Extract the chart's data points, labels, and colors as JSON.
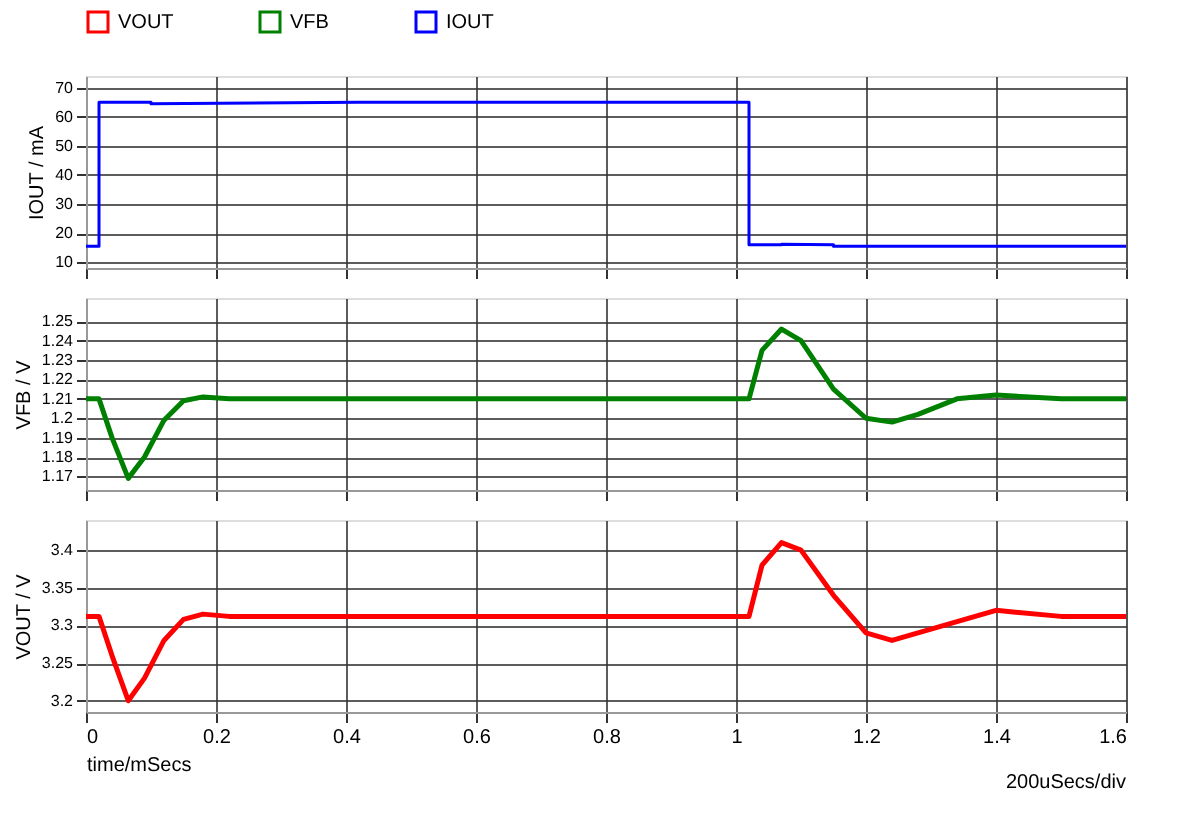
{
  "chart_data": [
    {
      "type": "line",
      "ylabel": "IOUT / mA",
      "legend": "top",
      "grid": true,
      "marker": "none",
      "line_style": "solid",
      "tick_labels": "y",
      "xlim": [
        0,
        1.6
      ],
      "xticks": [
        0,
        0.2,
        0.4,
        0.6,
        0.8,
        1,
        1.2,
        1.4,
        1.6
      ],
      "ylim": [
        8,
        74
      ],
      "yticks": [
        10,
        20,
        30,
        40,
        50,
        60,
        70
      ],
      "series": [
        {
          "name": "IOUT",
          "color": "#0000ff",
          "x": [
            0,
            0.02,
            0.02,
            0.1,
            0.1,
            0.42,
            1.02,
            1.02,
            1.07,
            1.07,
            1.15,
            1.15,
            1.6
          ],
          "values": [
            15.5,
            15.5,
            65,
            65,
            64.5,
            65,
            65,
            16,
            16,
            16.2,
            16,
            15.5,
            15.5
          ]
        }
      ]
    },
    {
      "type": "line",
      "ylabel": "VFB / V",
      "grid": true,
      "marker": "none",
      "line_style": "solid",
      "tick_labels": "y",
      "xlim": [
        0,
        1.6
      ],
      "xticks": [
        0,
        0.2,
        0.4,
        0.6,
        0.8,
        1,
        1.2,
        1.4,
        1.6
      ],
      "ylim": [
        1.163,
        1.262
      ],
      "yticks": [
        1.17,
        1.18,
        1.19,
        1.2,
        1.21,
        1.22,
        1.23,
        1.24,
        1.25
      ],
      "series": [
        {
          "name": "VFB",
          "color": "#008000",
          "x": [
            0,
            0.02,
            0.04,
            0.065,
            0.09,
            0.12,
            0.15,
            0.18,
            0.22,
            1.02,
            1.04,
            1.07,
            1.1,
            1.15,
            1.2,
            1.24,
            1.28,
            1.34,
            1.4,
            1.5,
            1.6
          ],
          "values": [
            1.21,
            1.21,
            1.19,
            1.169,
            1.18,
            1.199,
            1.209,
            1.211,
            1.21,
            1.21,
            1.235,
            1.246,
            1.24,
            1.215,
            1.2,
            1.198,
            1.202,
            1.21,
            1.212,
            1.21,
            1.21
          ]
        }
      ]
    },
    {
      "type": "line",
      "ylabel": "VOUT / V",
      "xlabel": "time/mSecs",
      "grid": true,
      "marker": "none",
      "line_style": "solid",
      "xlim": [
        0,
        1.6
      ],
      "xticks": [
        0,
        0.2,
        0.4,
        0.6,
        0.8,
        1,
        1.2,
        1.4,
        1.6
      ],
      "ylim": [
        3.185,
        3.44
      ],
      "yticks": [
        3.2,
        3.25,
        3.3,
        3.35,
        3.4
      ],
      "annotations": [
        "200uSecs/div"
      ],
      "series": [
        {
          "name": "VOUT",
          "color": "#ff0000",
          "x": [
            0,
            0.02,
            0.04,
            0.065,
            0.09,
            0.12,
            0.15,
            0.18,
            0.22,
            1.02,
            1.04,
            1.07,
            1.1,
            1.15,
            1.2,
            1.24,
            1.3,
            1.4,
            1.5,
            1.6
          ],
          "values": [
            3.312,
            3.312,
            3.26,
            3.2,
            3.23,
            3.28,
            3.308,
            3.315,
            3.312,
            3.312,
            3.38,
            3.41,
            3.4,
            3.34,
            3.29,
            3.28,
            3.295,
            3.32,
            3.312,
            3.312
          ]
        }
      ]
    }
  ]
}
